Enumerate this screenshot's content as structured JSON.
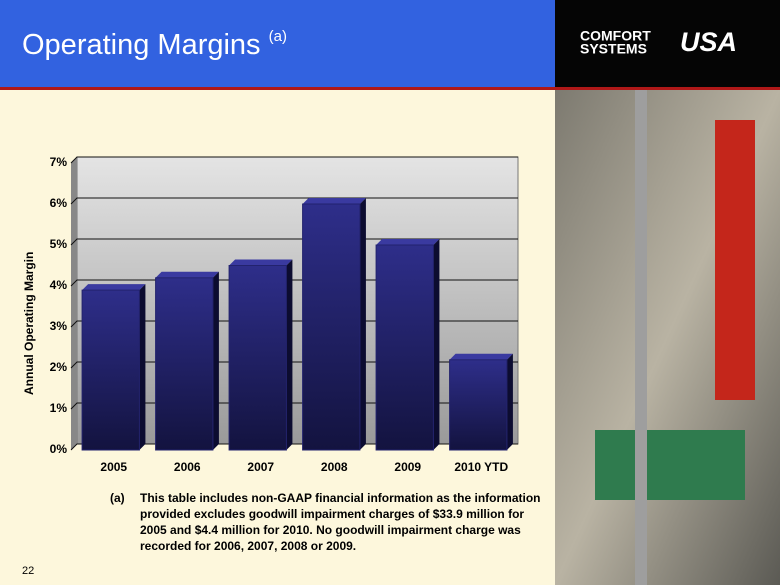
{
  "header": {
    "title": "Operating Margins",
    "title_note": "(a)",
    "logo": {
      "line1": "COMFORT",
      "line2": "SYSTEMS",
      "mark": "USA"
    }
  },
  "chart_data": {
    "type": "bar",
    "y_label": "Annual Operating Margin",
    "categories": [
      "2005",
      "2006",
      "2007",
      "2008",
      "2009",
      "2010 YTD"
    ],
    "values": [
      3.9,
      4.2,
      4.5,
      6.0,
      5.0,
      2.2
    ],
    "color": "#23236e",
    "ylim": [
      0,
      7
    ],
    "yticks": [
      {
        "value": 0,
        "label": "0%"
      },
      {
        "value": 1,
        "label": "1%"
      },
      {
        "value": 2,
        "label": "2%"
      },
      {
        "value": 3,
        "label": "3%"
      },
      {
        "value": 4,
        "label": "4%"
      },
      {
        "value": 5,
        "label": "5%"
      },
      {
        "value": 6,
        "label": "6%"
      },
      {
        "value": 7,
        "label": "7%"
      }
    ],
    "grid": true
  },
  "footnote": {
    "marker": "(a)",
    "lines": [
      "This table includes non-GAAP financial information as the information",
      "provided excludes goodwill impairment charges of $33.9 million for",
      "2005 and $4.4 million for 2010.  No goodwill impairment charge was",
      "recorded for 2006, 2007, 2008 or 2009."
    ]
  },
  "page_number": 22
}
